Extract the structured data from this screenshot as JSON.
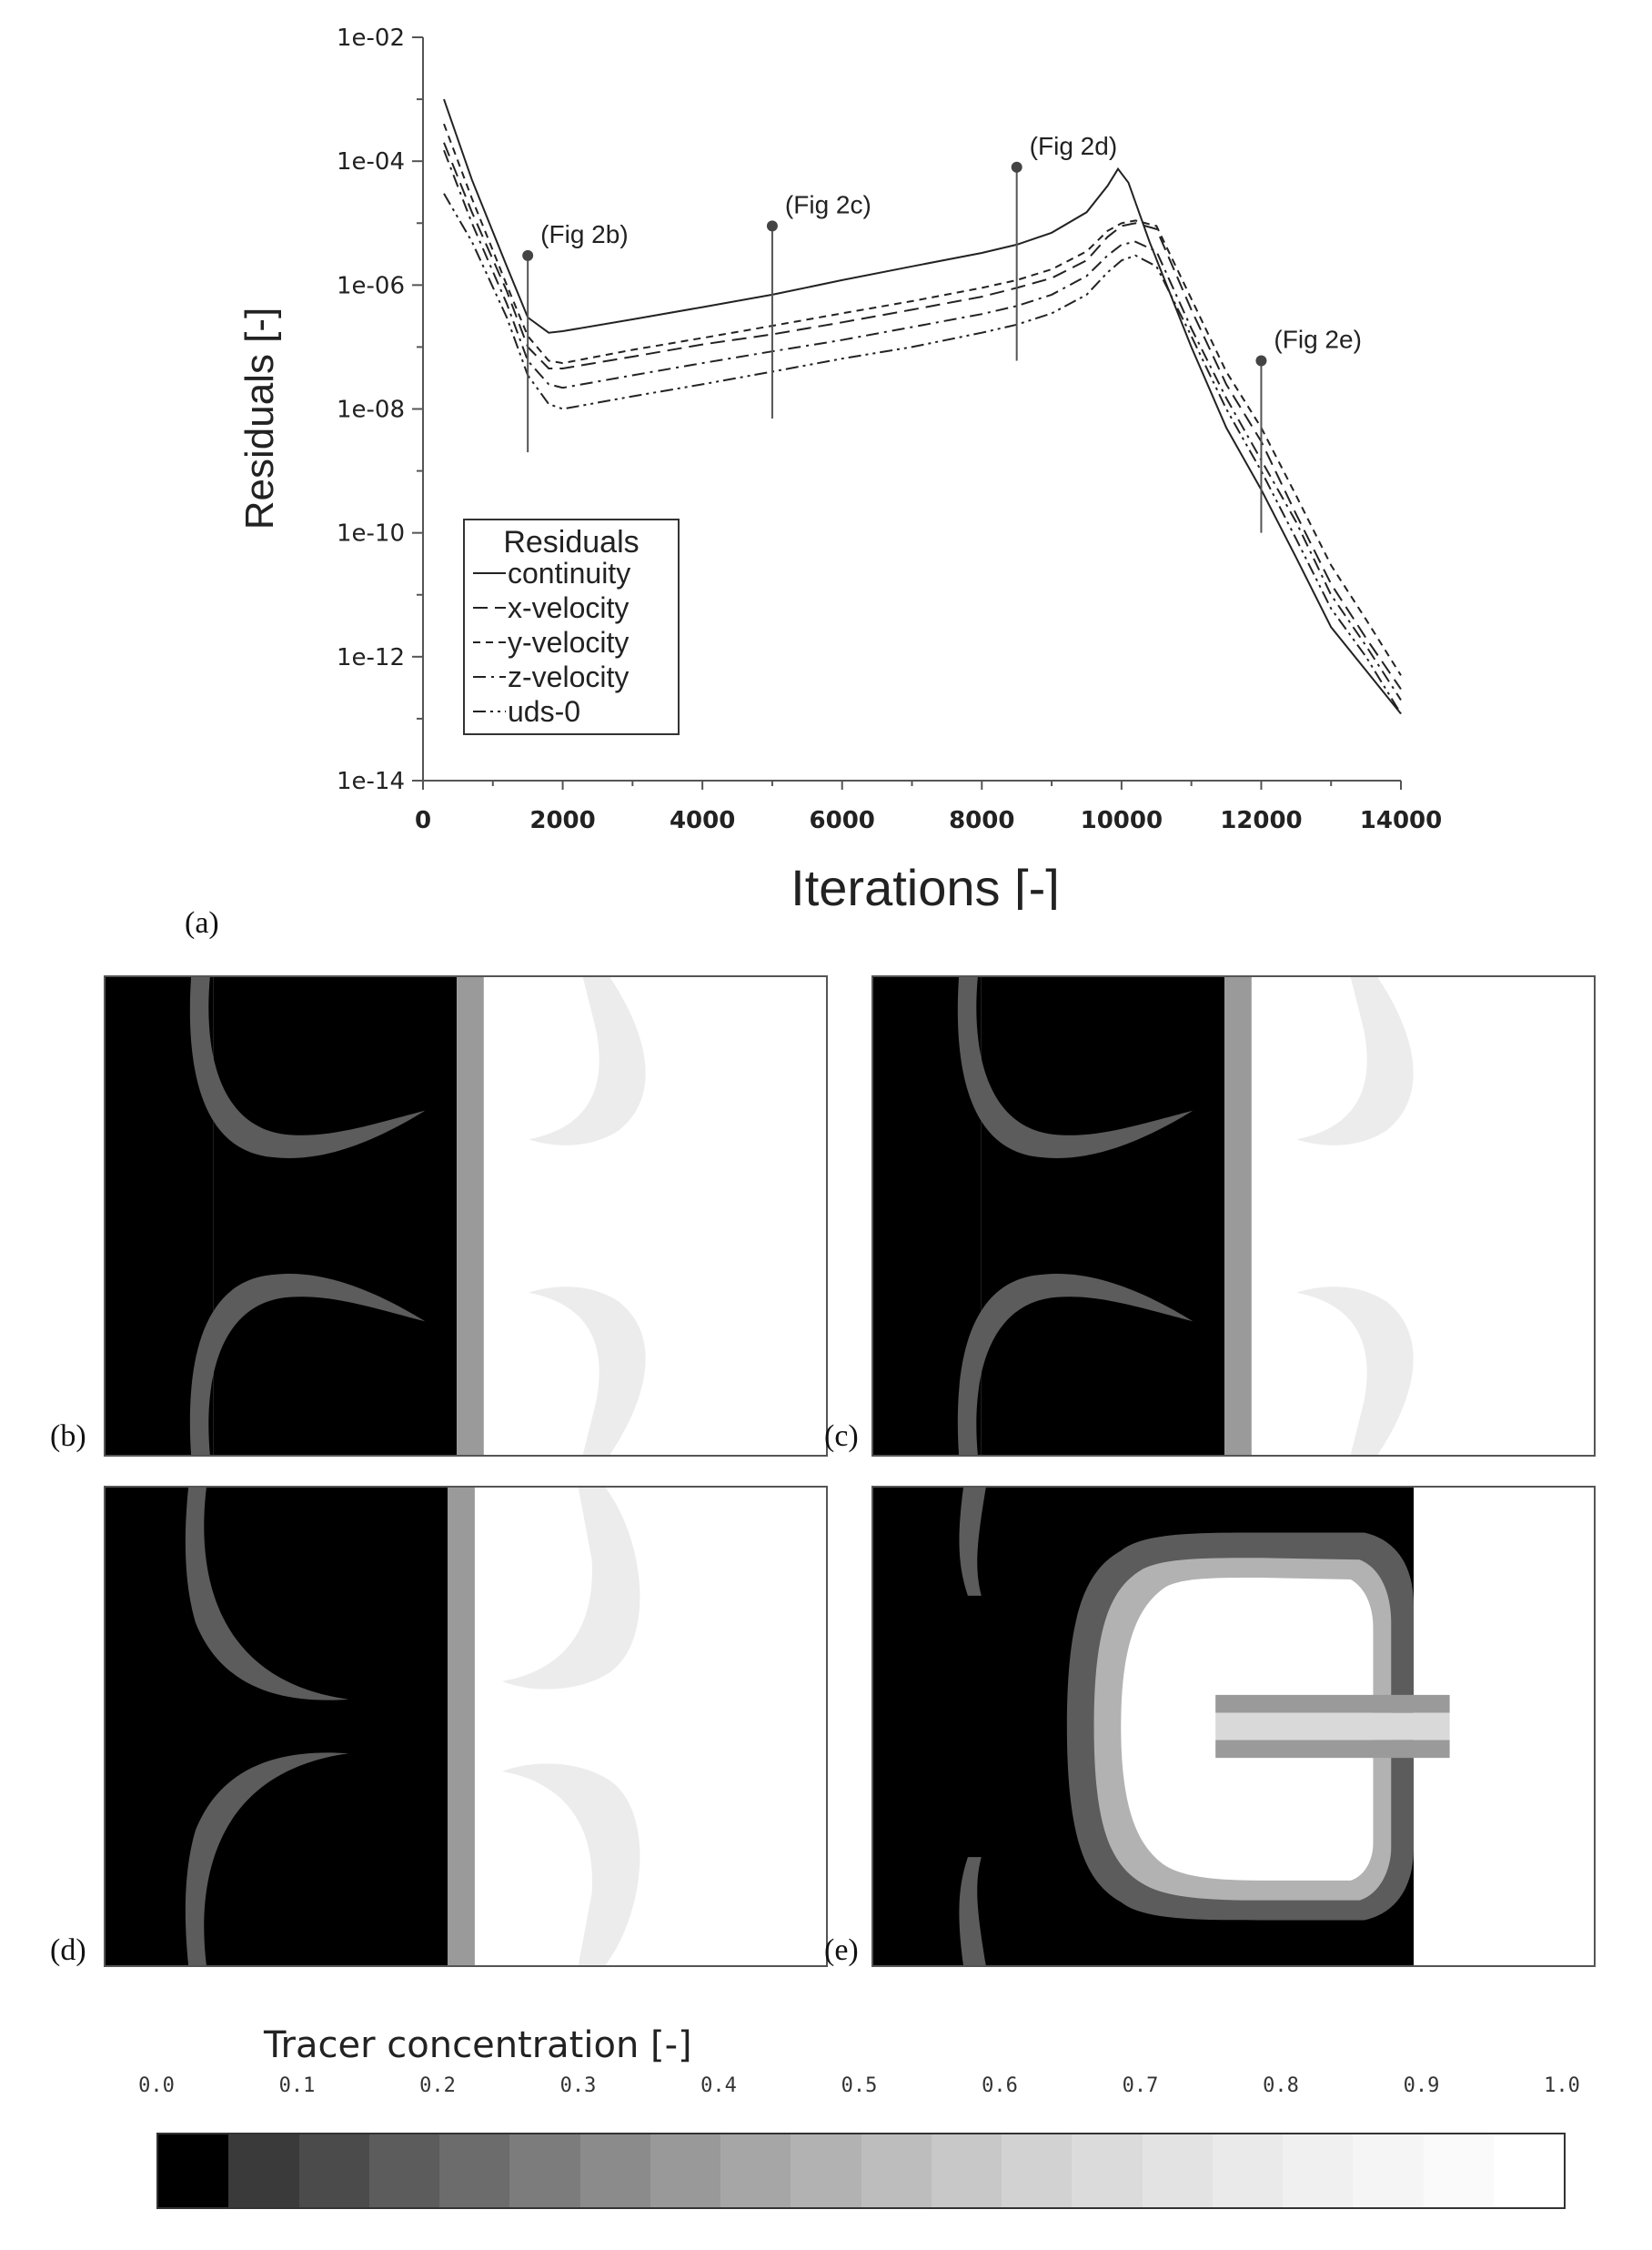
{
  "chart_data": [
    {
      "type": "line",
      "panel": "(a)",
      "xlabel": "Iterations [-]",
      "ylabel": "Residuals  [-]",
      "x_ticks": [
        "0",
        "2000",
        "4000",
        "6000",
        "8000",
        "10000",
        "12000",
        "14000"
      ],
      "y_ticks": [
        "1e-02",
        "1e-04",
        "1e-06",
        "1e-08",
        "1e-10",
        "1e-12",
        "1e-14"
      ],
      "xlim": [
        0,
        14000
      ],
      "ylim": [
        1e-14,
        0.01
      ],
      "yscale": "log",
      "grid": false,
      "legend": {
        "title": "Residuals",
        "placement": "bottom-left"
      },
      "series": [
        {
          "name": "continuity",
          "dash": "solid",
          "x": [
            300,
            700,
            1200,
            1500,
            1800,
            2000,
            3000,
            4000,
            5000,
            6000,
            7000,
            8000,
            8500,
            9000,
            9500,
            9800,
            9950,
            10100,
            10400,
            11000,
            11500,
            12000,
            12500,
            13000,
            13500,
            14000
          ],
          "y": [
            0.001,
            5e-05,
            2e-06,
            3e-07,
            1.7e-07,
            1.8e-07,
            2.8e-07,
            4.4e-07,
            7e-07,
            1.2e-06,
            2e-06,
            3.3e-06,
            4.5e-06,
            7e-06,
            1.5e-05,
            4e-05,
            7.5e-05,
            4.5e-05,
            5e-06,
            1e-07,
            5e-09,
            5e-10,
            4e-11,
            3e-12,
            6e-13,
            1.2e-13
          ]
        },
        {
          "name": "x-velocity",
          "dash": "long-dash",
          "x": [
            300,
            700,
            1200,
            1500,
            1800,
            2000,
            3000,
            4000,
            5000,
            6000,
            7000,
            8000,
            8500,
            9000,
            9500,
            9800,
            10000,
            10200,
            10500,
            11000,
            11500,
            12000,
            12500,
            13000,
            13500,
            14000
          ],
          "y": [
            0.0002,
            1.5e-05,
            8e-07,
            1e-07,
            4.5e-08,
            4.5e-08,
            7e-08,
            1.1e-07,
            1.6e-07,
            2.5e-07,
            4e-07,
            6.5e-07,
            9e-07,
            1.3e-06,
            2.5e-06,
            6e-06,
            9e-06,
            1e-05,
            8e-06,
            4e-07,
            2.5e-08,
            3e-09,
            2e-10,
            1.5e-11,
            2e-12,
            3e-13
          ]
        },
        {
          "name": "y-velocity",
          "dash": "short-dash",
          "x": [
            300,
            700,
            1200,
            1500,
            1800,
            2000,
            3000,
            4000,
            5000,
            6000,
            7000,
            8000,
            8500,
            9000,
            9500,
            9800,
            10000,
            10200,
            10500,
            11000,
            11500,
            12000,
            12500,
            13000,
            13500,
            14000
          ],
          "y": [
            0.0004,
            2.5e-05,
            1e-06,
            1.5e-07,
            6e-08,
            5.5e-08,
            9e-08,
            1.4e-07,
            2.2e-07,
            3.5e-07,
            5.5e-07,
            9e-07,
            1.2e-06,
            1.8e-06,
            3.5e-06,
            7.5e-06,
            1e-05,
            1.1e-05,
            9e-06,
            6e-07,
            4e-08,
            5e-09,
            4e-10,
            3e-11,
            4e-12,
            5e-13
          ]
        },
        {
          "name": "z-velocity",
          "dash": "dash-dot",
          "x": [
            300,
            700,
            1200,
            1500,
            1800,
            2000,
            3000,
            4000,
            5000,
            6000,
            7000,
            8000,
            8500,
            9000,
            9500,
            9800,
            10000,
            10200,
            10500,
            11000,
            11500,
            12000,
            12500,
            13000,
            13500,
            14000
          ],
          "y": [
            0.00015,
            1e-05,
            5e-07,
            6e-08,
            2.5e-08,
            2.2e-08,
            3.5e-08,
            5.5e-08,
            8.5e-08,
            1.3e-07,
            2.1e-07,
            3.4e-07,
            4.6e-07,
            7e-07,
            1.4e-06,
            3e-06,
            4.5e-06,
            5e-06,
            3.5e-06,
            2e-07,
            1.5e-08,
            1.5e-09,
            1.5e-10,
            1e-11,
            1.5e-12,
            2e-13
          ]
        },
        {
          "name": "uds-0",
          "dash": "dash-dot-dot",
          "x": [
            300,
            700,
            1200,
            1500,
            1800,
            2000,
            3000,
            4000,
            5000,
            6000,
            7000,
            8000,
            8500,
            9000,
            9500,
            9800,
            10000,
            10200,
            10500,
            11000,
            11500,
            12000,
            12500,
            13000,
            13500,
            14000
          ],
          "y": [
            3e-05,
            5e-06,
            3e-07,
            3.5e-08,
            1.2e-08,
            1e-08,
            1.6e-08,
            2.5e-08,
            4e-08,
            6.5e-08,
            1e-07,
            1.7e-07,
            2.3e-07,
            3.5e-07,
            7e-07,
            1.6e-06,
            2.5e-06,
            3e-06,
            2e-06,
            1.5e-07,
            1e-08,
            1e-09,
            8e-11,
            6e-12,
            1e-12,
            1.2e-13
          ]
        }
      ],
      "annotations": [
        {
          "label": "(Fig 2b)",
          "x": 1500,
          "y_top": 3e-06,
          "y_bottom": 2e-09
        },
        {
          "label": "(Fig 2c)",
          "x": 5000,
          "y_top": 9e-06,
          "y_bottom": 7e-09
        },
        {
          "label": "(Fig 2d)",
          "x": 8500,
          "y_top": 8e-05,
          "y_bottom": 6e-08
        },
        {
          "label": "(Fig 2e)",
          "x": 12000,
          "y_top": 6e-08,
          "y_bottom": 1e-10
        }
      ]
    },
    {
      "type": "heatmap",
      "title": "Tracer concentration [-]",
      "colorbar_ticks": [
        "0.0",
        "0.1",
        "0.2",
        "0.3",
        "0.4",
        "0.5",
        "0.6",
        "0.7",
        "0.8",
        "0.9",
        "1.0"
      ],
      "colorbar_range": [
        0,
        1
      ],
      "colorbar_levels": 20,
      "colormap": [
        "#000000",
        "#3a3a3a",
        "#4b4b4b",
        "#5c5c5c",
        "#6c6c6c",
        "#7c7c7c",
        "#8b8b8b",
        "#999999",
        "#a6a6a6",
        "#b2b2b2",
        "#bdbdbd",
        "#c8c8c8",
        "#d2d2d2",
        "#dbdbdb",
        "#e3e3e3",
        "#eaeaea",
        "#f0f0f0",
        "#f5f5f5",
        "#fafafa",
        "#ffffff"
      ],
      "panels": [
        "(b)",
        "(c)",
        "(d)",
        "(e)"
      ]
    }
  ],
  "panel_labels": {
    "a": "(a)",
    "b": "(b)",
    "c": "(c)",
    "d": "(d)",
    "e": "(e)"
  }
}
